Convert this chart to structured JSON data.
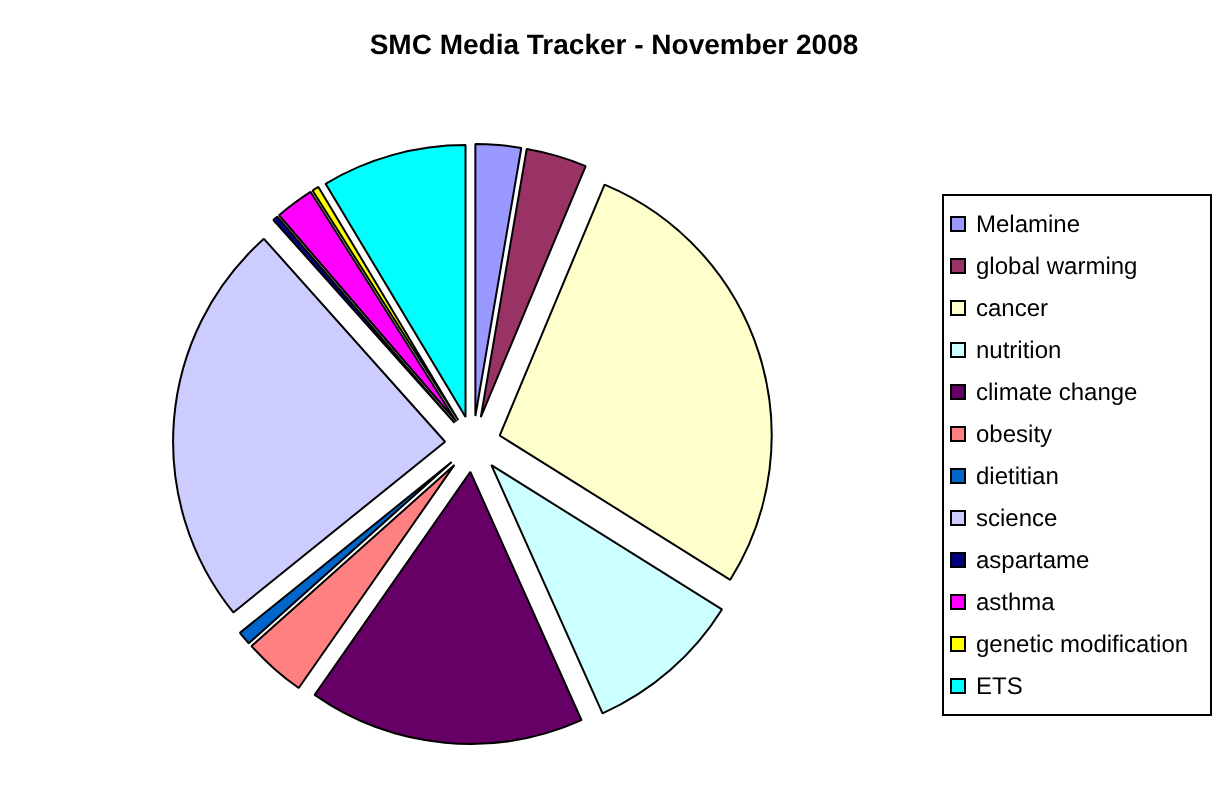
{
  "chart_data": {
    "type": "pie",
    "title": "SMC Media Tracker - November 2008",
    "categories": [
      "Melamine",
      "global warming",
      "cancer",
      "nutrition",
      "climate change",
      "obesity",
      "dietitian",
      "science",
      "aspartame",
      "asthma",
      "genetic modification",
      "ETS"
    ],
    "values": [
      2.7,
      3.6,
      27.6,
      9.4,
      16.4,
      3.7,
      0.8,
      24.2,
      0.3,
      2.3,
      0.4,
      8.6
    ],
    "colors": [
      "#9999ff",
      "#993366",
      "#ffffcc",
      "#ccffff",
      "#660066",
      "#ff8080",
      "#0066cc",
      "#ccccff",
      "#000080",
      "#ff00ff",
      "#ffff00",
      "#00ffff"
    ],
    "legend": "right"
  }
}
